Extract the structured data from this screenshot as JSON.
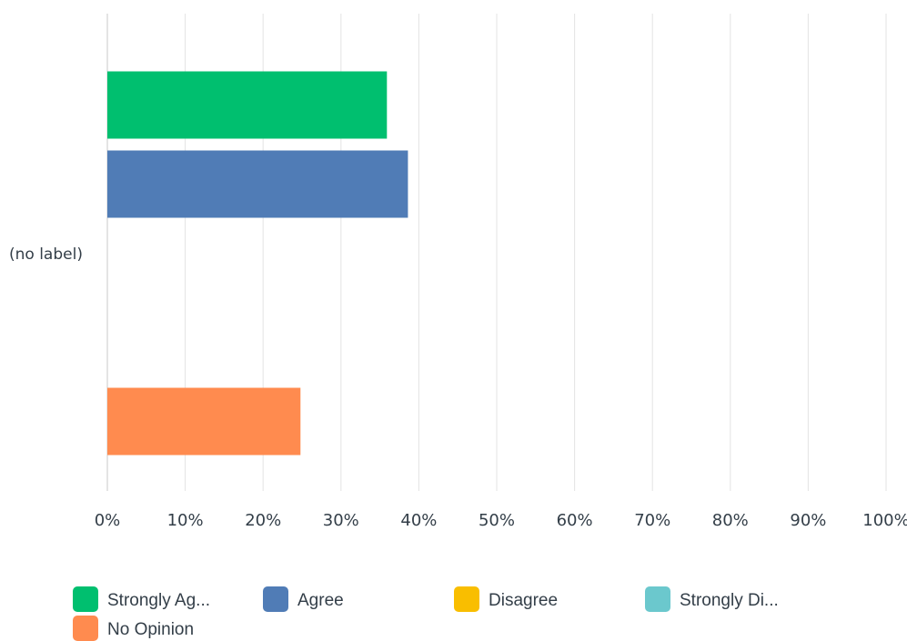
{
  "chart_data": {
    "type": "bar",
    "orientation": "horizontal",
    "categories": [
      "(no label)"
    ],
    "series": [
      {
        "name": "Strongly Ag...",
        "color": "#00bf6f",
        "values": [
          35.9
        ]
      },
      {
        "name": "Agree",
        "color": "#507cb6",
        "values": [
          38.6
        ]
      },
      {
        "name": "Disagree",
        "color": "#f9be00",
        "values": [
          0
        ]
      },
      {
        "name": "Strongly Di...",
        "color": "#6bc8cd",
        "values": [
          0
        ]
      },
      {
        "name": "No Opinion",
        "color": "#ff8b4f",
        "values": [
          24.8
        ]
      }
    ],
    "xlim": [
      0,
      100
    ],
    "x_ticks": [
      "0%",
      "10%",
      "20%",
      "30%",
      "40%",
      "50%",
      "60%",
      "70%",
      "80%",
      "90%",
      "100%"
    ],
    "title": "",
    "xlabel": "",
    "ylabel": "",
    "grid": "vertical",
    "legend_position": "bottom"
  }
}
